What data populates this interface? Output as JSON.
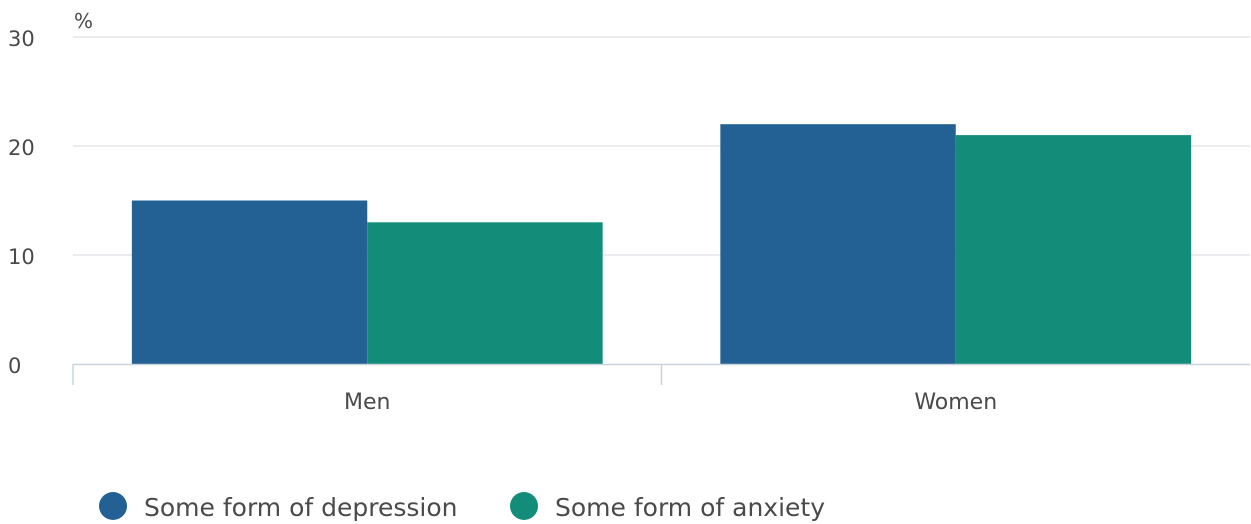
{
  "chart_data": {
    "type": "bar",
    "ylabel": "%",
    "ylim": [
      0,
      30
    ],
    "yticks": [
      0,
      10,
      20,
      30
    ],
    "categories": [
      "Men",
      "Women"
    ],
    "series": [
      {
        "name": "Some form of depression",
        "color": "#236093",
        "values": [
          15,
          22
        ]
      },
      {
        "name": "Some form of anxiety",
        "color": "#138d7a",
        "values": [
          13,
          21
        ]
      }
    ],
    "grid": true,
    "legend": "bottom-left"
  }
}
